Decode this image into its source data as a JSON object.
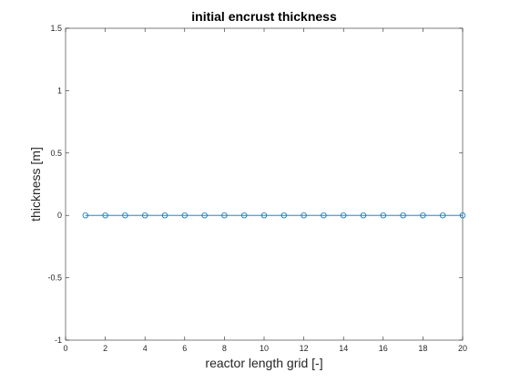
{
  "chart_data": {
    "type": "line",
    "title": "initial encrust thickness",
    "xlabel": "reactor length grid [-]",
    "ylabel": "thickness [m]",
    "xlim": [
      0,
      20
    ],
    "ylim": [
      -1,
      1.5
    ],
    "xticks": [
      0,
      2,
      4,
      6,
      8,
      10,
      12,
      14,
      16,
      18,
      20
    ],
    "yticks": [
      -1,
      -0.5,
      0,
      0.5,
      1,
      1.5
    ],
    "xtick_labels": [
      "0",
      "2",
      "4",
      "6",
      "8",
      "10",
      "12",
      "14",
      "16",
      "18",
      "20"
    ],
    "ytick_labels": [
      "-1",
      "-0.5",
      "0",
      "0.5",
      "1",
      "1.5"
    ],
    "grid": false,
    "series": [
      {
        "marker": "circle",
        "color": "#0072BD",
        "x": [
          1,
          2,
          3,
          4,
          5,
          6,
          7,
          8,
          9,
          10,
          11,
          12,
          13,
          14,
          15,
          16,
          17,
          18,
          19,
          20
        ],
        "y": [
          0,
          0,
          0,
          0,
          0,
          0,
          0,
          0,
          0,
          0,
          0,
          0,
          0,
          0,
          0,
          0,
          0,
          0,
          0,
          0
        ]
      }
    ]
  }
}
